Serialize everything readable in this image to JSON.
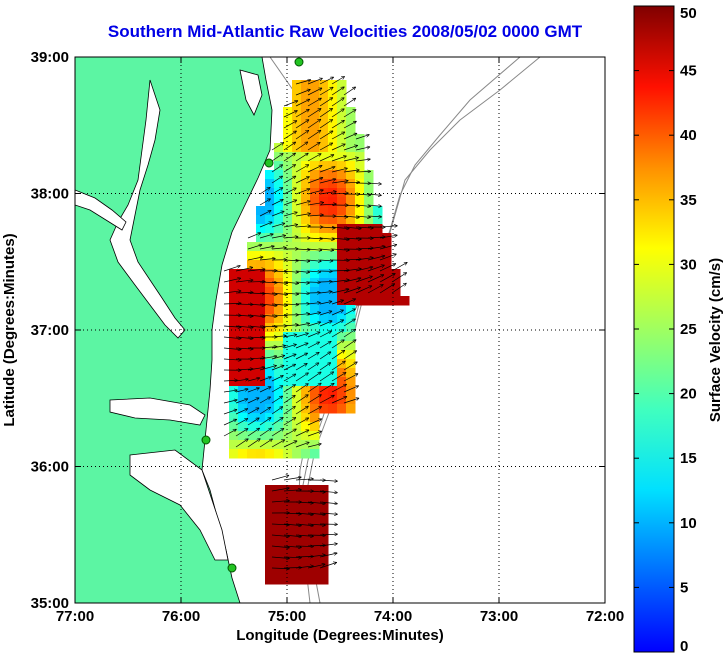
{
  "title": "Southern Mid-Atlantic Raw Velocities 2008/05/02 0000 GMT",
  "map": {
    "xlabel": "Longitude (Degrees:Minutes)",
    "ylabel": "Latitude (Degrees:Minutes)",
    "x_ticks": [
      "77:00",
      "76:00",
      "75:00",
      "74:00",
      "73:00",
      "72:00"
    ],
    "y_ticks": [
      "39:00",
      "38:00",
      "37:00",
      "36:00",
      "35:00"
    ],
    "lon_range": [
      -77,
      -72
    ],
    "lat_range": [
      35,
      39
    ],
    "grid": "dotted",
    "land_color": "#5cf5a3"
  },
  "colorbar": {
    "label": "Surface Velocity (cm/s)",
    "ticks": [
      "50",
      "45",
      "40",
      "35",
      "30",
      "25",
      "20",
      "15",
      "10",
      "5",
      "0"
    ],
    "range": [
      0,
      50
    ],
    "colormap": "jet"
  }
}
